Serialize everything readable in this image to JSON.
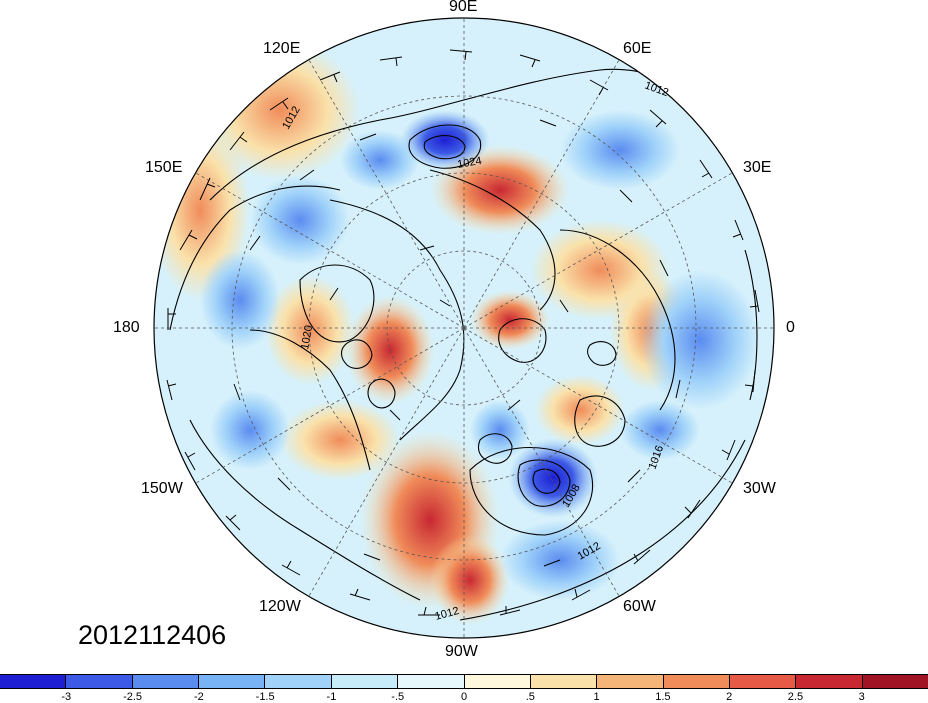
{
  "date_label": "2012112406",
  "longitude_labels": {
    "lon_90e": "90E",
    "lon_60e": "60E",
    "lon_30e": "30E",
    "lon_0": "0",
    "lon_30w": "30W",
    "lon_60w": "60W",
    "lon_90w": "90W",
    "lon_120w": "120W",
    "lon_150w": "150W",
    "lon_180": "180",
    "lon_150e": "150E",
    "lon_120e": "120E"
  },
  "contour_labels": {
    "c1012_a": "1012",
    "c1012_b": "1012",
    "c1024": "1024",
    "c1008": "1008",
    "c1016": "1016",
    "c1020": "1020",
    "c1012_c": "1012",
    "c1012_d": "1012"
  },
  "colorbar": {
    "colors": [
      "#1e1ed2",
      "#3c5ae6",
      "#5a8cf0",
      "#78b4f5",
      "#a0d2fa",
      "#c8ebfa",
      "#e6f8fc",
      "#fff8dc",
      "#fae1aa",
      "#f5b478",
      "#f08c5a",
      "#e65a46",
      "#c82832",
      "#a01423"
    ],
    "tick_labels": [
      "-3",
      "-2.5",
      "-2",
      "-1.5",
      "-1",
      "-.5",
      "0",
      ".5",
      "1",
      "1.5",
      "2",
      "2.5",
      "3"
    ]
  }
}
